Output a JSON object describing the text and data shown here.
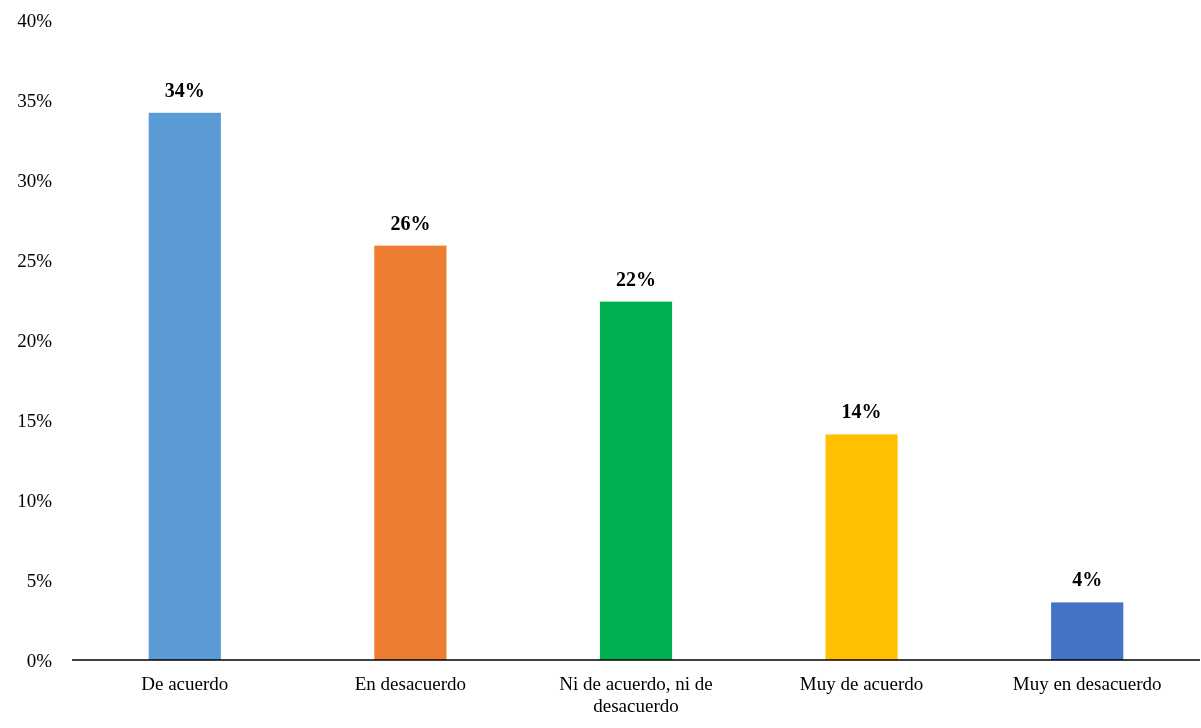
{
  "chart_data": {
    "type": "bar",
    "categories": [
      "De acuerdo",
      "En desacuerdo",
      "Ni de acuerdo, ni de desacuerdo",
      "Muy de acuerdo",
      "Muy en desacuerdo"
    ],
    "values": [
      34.2,
      25.9,
      22.4,
      14.1,
      3.6
    ],
    "colors": [
      "#5b9bd5",
      "#ed7d31",
      "#00b050",
      "#ffc000",
      "#4472c4"
    ],
    "value_labels": [
      "34%",
      "26%",
      "22%",
      "14%",
      "4%"
    ],
    "ylim": [
      0,
      40
    ],
    "yticks": [
      {
        "value": 0,
        "label": "0%"
      },
      {
        "value": 5,
        "label": "5%"
      },
      {
        "value": 10,
        "label": "10%"
      },
      {
        "value": 15,
        "label": "15%"
      },
      {
        "value": 20,
        "label": "20%"
      },
      {
        "value": 25,
        "label": "25%"
      },
      {
        "value": 30,
        "label": "30%"
      },
      {
        "value": 35,
        "label": "35%"
      },
      {
        "value": 40,
        "label": "40%"
      }
    ],
    "grid": false
  }
}
